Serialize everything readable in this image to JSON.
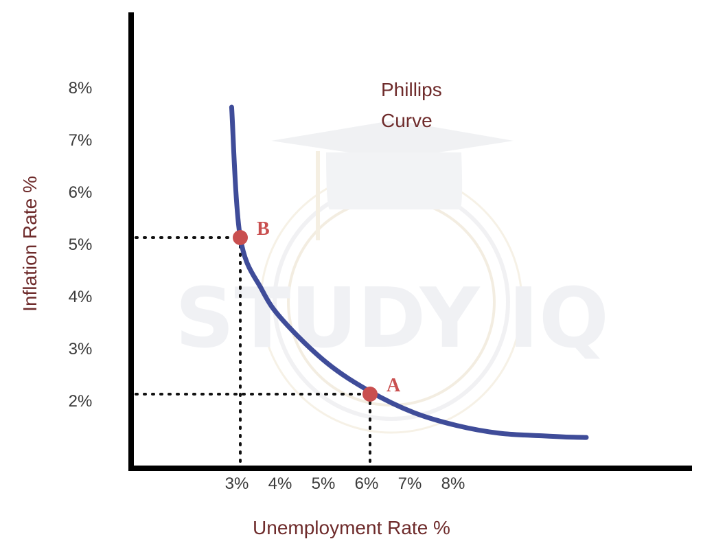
{
  "chart_data": {
    "type": "line",
    "xlabel": "Unemployment Rate %",
    "ylabel": "Inflation Rate %",
    "x_ticks": [
      "3%",
      "4%",
      "5%",
      "6%",
      "7%",
      "8%"
    ],
    "y_ticks": [
      "2%",
      "3%",
      "4%",
      "5%",
      "6%",
      "7%",
      "8%"
    ],
    "grid": false,
    "series": [
      {
        "curve_label": "Phillips\nCurve",
        "x": [
          2.8,
          3.0,
          3.5,
          4.0,
          5.0,
          6.0,
          7.0,
          8.0,
          9.0,
          10.0,
          10.5,
          11.0
        ],
        "y": [
          7.5,
          5.0,
          4.0,
          3.4,
          2.6,
          2.05,
          1.65,
          1.4,
          1.25,
          1.2,
          1.18,
          1.17
        ],
        "color": "#3f4c99"
      }
    ],
    "points": [
      {
        "label": "B",
        "x": 3.0,
        "y": 5.0
      },
      {
        "label": "A",
        "x": 6.0,
        "y": 2.0
      }
    ],
    "point_color": "#c94f4f",
    "axis_color": "#000000",
    "watermark": "STUDY IQ"
  }
}
